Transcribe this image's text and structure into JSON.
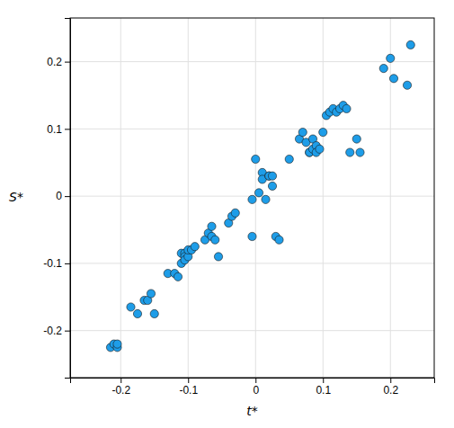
{
  "chart_data": {
    "type": "scatter",
    "x": [
      -0.215,
      -0.21,
      -0.205,
      -0.205,
      -0.185,
      -0.175,
      -0.165,
      -0.16,
      -0.155,
      -0.15,
      -0.13,
      -0.12,
      -0.115,
      -0.11,
      -0.11,
      -0.105,
      -0.105,
      -0.105,
      -0.1,
      -0.1,
      -0.095,
      -0.09,
      -0.075,
      -0.07,
      -0.065,
      -0.065,
      -0.06,
      -0.055,
      -0.04,
      -0.035,
      -0.03,
      0.0,
      -0.005,
      0.005,
      0.01,
      0.01,
      0.015,
      0.02,
      0.02,
      0.025,
      0.025,
      0.03,
      0.035,
      0.05,
      -0.005,
      0.065,
      0.07,
      0.075,
      0.08,
      0.08,
      0.085,
      0.085,
      0.09,
      0.09,
      0.095,
      0.1,
      0.105,
      0.11,
      0.115,
      0.12,
      0.125,
      0.13,
      0.135,
      0.14,
      0.15,
      0.155,
      0.19,
      0.2,
      0.205,
      0.225,
      0.23
    ],
    "y": [
      -0.225,
      -0.22,
      -0.225,
      -0.22,
      -0.165,
      -0.175,
      -0.155,
      -0.155,
      -0.145,
      -0.175,
      -0.115,
      -0.115,
      -0.12,
      -0.1,
      -0.085,
      -0.085,
      -0.09,
      -0.095,
      -0.09,
      -0.08,
      -0.08,
      -0.075,
      -0.065,
      -0.055,
      -0.06,
      -0.045,
      -0.065,
      -0.09,
      -0.04,
      -0.03,
      -0.025,
      0.055,
      -0.005,
      0.005,
      0.035,
      0.025,
      -0.005,
      0.03,
      0.03,
      0.03,
      0.015,
      -0.06,
      -0.065,
      0.055,
      -0.06,
      0.085,
      0.095,
      0.08,
      0.065,
      0.065,
      0.085,
      0.07,
      0.075,
      0.065,
      0.07,
      0.095,
      0.12,
      0.125,
      0.13,
      0.125,
      0.13,
      0.135,
      0.13,
      0.065,
      0.085,
      0.065,
      0.19,
      0.205,
      0.175,
      0.165,
      0.225
    ],
    "color": "#1E9DE8",
    "xlabel": "t*",
    "ylabel": "S*",
    "xlim": [
      -0.275,
      0.265
    ],
    "ylim": [
      -0.27,
      0.265
    ],
    "xticks": [
      -0.2,
      -0.1,
      0,
      0.1,
      0.2
    ],
    "yticks": [
      -0.2,
      -0.1,
      0,
      0.1,
      0.2
    ],
    "grid": true
  }
}
